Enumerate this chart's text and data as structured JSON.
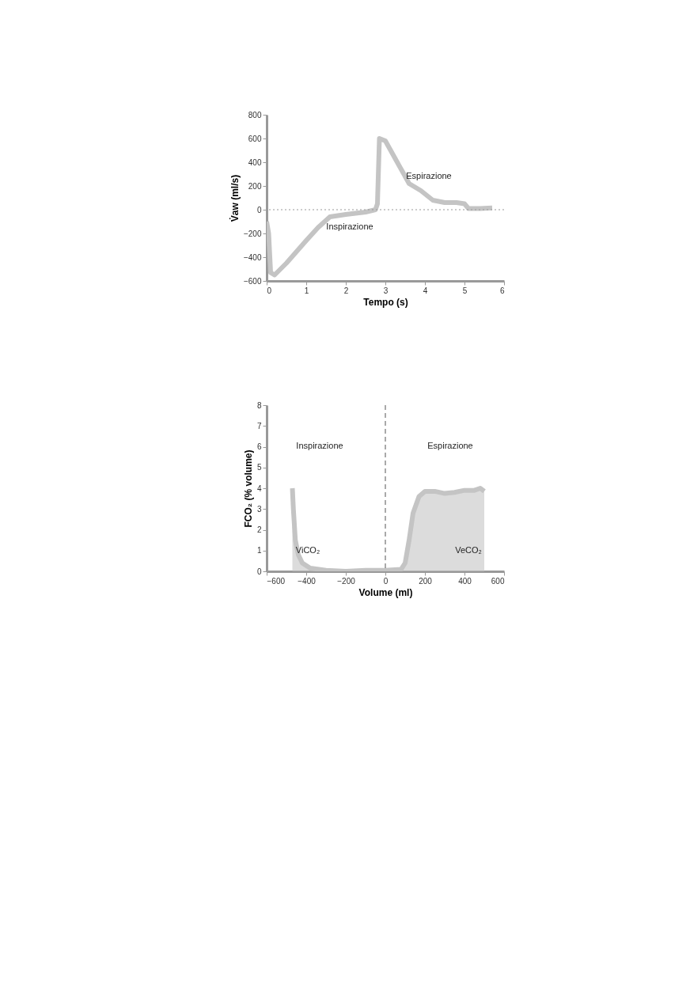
{
  "chart_data": [
    {
      "type": "line",
      "xlabel": "Tempo (s)",
      "ylabel": "V̇aw (ml/s)",
      "xlim": [
        0,
        6
      ],
      "xticks": [
        0,
        1,
        2,
        3,
        4,
        5,
        6
      ],
      "ylim": [
        -600,
        800
      ],
      "yticks": [
        -600,
        -400,
        -200,
        0,
        200,
        400,
        600,
        800
      ],
      "grid": false,
      "x": [
        0,
        0.05,
        0.1,
        0.2,
        0.5,
        1.0,
        1.3,
        1.6,
        2.0,
        2.5,
        2.75,
        2.8,
        2.85,
        3.0,
        3.3,
        3.6,
        3.9,
        4.2,
        4.5,
        4.8,
        5.0,
        5.1,
        5.4,
        5.7
      ],
      "series": [
        {
          "color": "#c4c4c4",
          "values": [
            -100,
            -200,
            -530,
            -550,
            -450,
            -260,
            -150,
            -60,
            -40,
            -20,
            0,
            50,
            600,
            580,
            400,
            220,
            160,
            80,
            60,
            60,
            50,
            10,
            10,
            15
          ]
        }
      ],
      "ref_lines": [
        {
          "axis": "y",
          "value": 0,
          "line_style": "dotted",
          "color": "#999999"
        }
      ],
      "annotations": [
        "Espirazione",
        "Inspirazione"
      ]
    },
    {
      "type": "area",
      "xlabel": "Volume (ml)",
      "ylabel": "FCO₂ (% volume)",
      "xlim": [
        -600,
        600
      ],
      "xticks": [
        -600,
        -400,
        -200,
        0,
        200,
        400,
        600
      ],
      "ylim": [
        0,
        8
      ],
      "yticks": [
        0,
        1,
        2,
        3,
        4,
        5,
        6,
        7,
        8
      ],
      "grid": false,
      "x": [
        -470,
        -465,
        -455,
        -440,
        -420,
        -380,
        -300,
        -200,
        -100,
        0,
        80,
        100,
        120,
        140,
        170,
        200,
        250,
        300,
        350,
        400,
        450,
        480,
        500
      ],
      "series": [
        {
          "color": "#c4c4c4",
          "values": [
            4.0,
            3.0,
            1.5,
            0.8,
            0.4,
            0.15,
            0.05,
            0.0,
            0.05,
            0.05,
            0.1,
            0.4,
            1.5,
            2.8,
            3.6,
            3.85,
            3.85,
            3.75,
            3.8,
            3.9,
            3.9,
            4.0,
            3.85
          ]
        }
      ],
      "ref_lines": [
        {
          "axis": "x",
          "value": 0,
          "line_style": "dashed",
          "color": "#555555"
        }
      ],
      "annotations": [
        "Inspirazione",
        "Espirazione",
        "ViCO₂",
        "VeCO₂"
      ]
    }
  ]
}
